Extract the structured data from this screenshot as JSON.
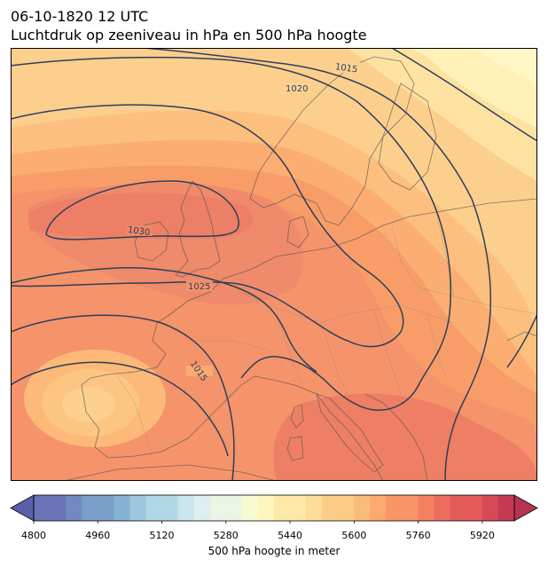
{
  "header": {
    "datetime": "06-10-1820 12 UTC",
    "subtitle": "Luchtdruk op zeeniveau in hPa en 500 hPa hoogte"
  },
  "map": {
    "region": "Europe",
    "fill_variable": "500 hPa geopotential height",
    "contour_variable": "Sea level pressure",
    "isobar_color": "#2e3f5c",
    "isobar_labels": [
      "1015",
      "1020",
      "1030",
      "1025",
      "1015"
    ],
    "high_pressure_centers": [
      "British Isles",
      "Bay of Biscay / Iberia"
    ]
  },
  "colorbar": {
    "label": "500 hPa hoogte in meter",
    "min": 4800,
    "max": 6000,
    "step": 40,
    "extend": "both",
    "colormap": "RdYlBu_r",
    "tick_labels": [
      "4800",
      "4960",
      "5120",
      "5280",
      "5440",
      "5600",
      "5760",
      "5920"
    ]
  }
}
